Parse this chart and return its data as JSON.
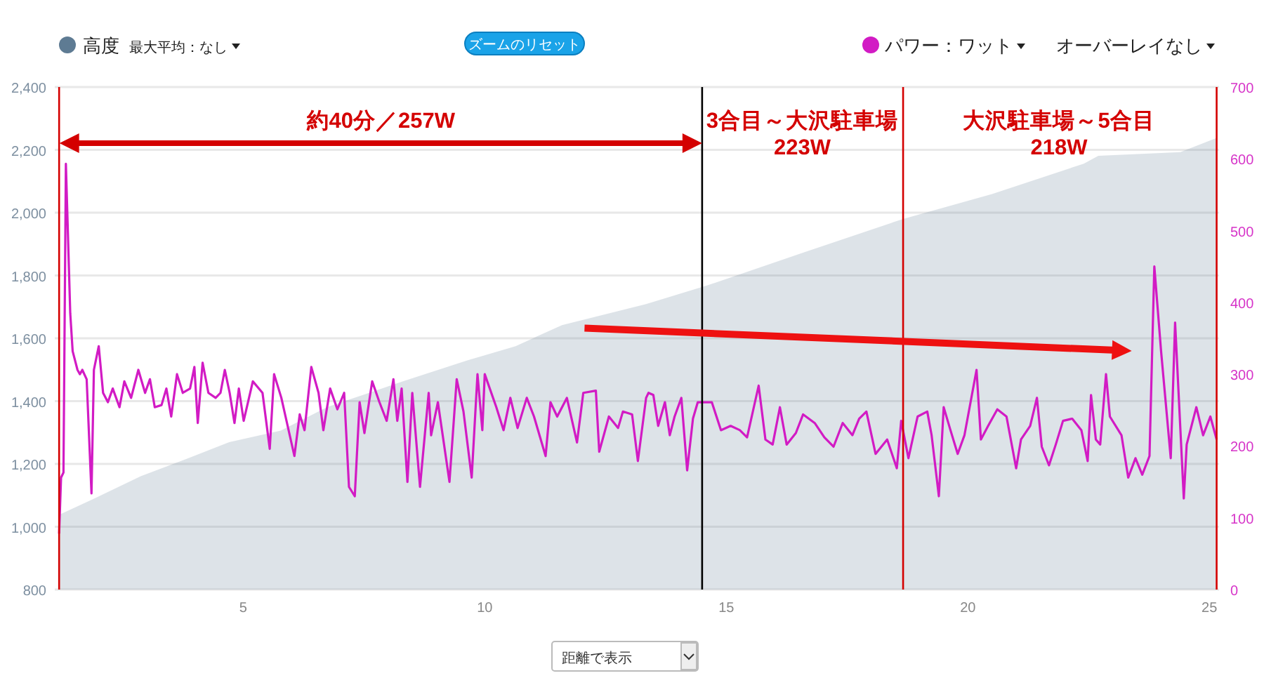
{
  "chart_data": {
    "type": "line",
    "legend": "top",
    "grid": "y",
    "marker": "none",
    "xlim": [
      1.1,
      25.2
    ],
    "xticks": [
      5,
      10,
      15,
      20,
      25
    ],
    "ylim": [
      800,
      2400
    ],
    "yticks": [
      800,
      {
        "value": 1000,
        "label": "1,000"
      },
      {
        "value": 1200,
        "label": "1,200"
      },
      {
        "value": 1400,
        "label": "1,400"
      },
      {
        "value": 1600,
        "label": "1,600"
      },
      {
        "value": 1800,
        "label": "1,800"
      },
      {
        "value": 2000,
        "label": "2,000"
      },
      {
        "value": 2200,
        "label": "2,200"
      },
      {
        "value": 2400,
        "label": "2,400"
      }
    ],
    "y2lim": [
      0,
      700
    ],
    "y2ticks": [
      0,
      100,
      200,
      300,
      400,
      500,
      600,
      700
    ],
    "series": [
      {
        "name": "高度",
        "type": "area",
        "color": "#5e7b93",
        "x": [
          1.19,
          1.92,
          2.88,
          3.84,
          4.71,
          5.78,
          6.74,
          8.31,
          9.65,
          10.64,
          11.6,
          13.34,
          14.6,
          16.6,
          18.66,
          20.5,
          22.4,
          22.7,
          24.4,
          25.15
        ],
        "values": [
          1038,
          1090,
          1161,
          1217,
          1269,
          1306,
          1381,
          1463,
          1530,
          1575,
          1642,
          1709,
          1768,
          1873,
          1980,
          2059,
          2156,
          2181,
          2193,
          2238
        ]
      },
      {
        "name": "パワー：ワット",
        "type": "line",
        "axis": "y2",
        "color": "#d21bc4",
        "x": [
          1.19,
          1.23,
          1.28,
          1.33,
          1.42,
          1.47,
          1.57,
          1.62,
          1.67,
          1.76,
          1.86,
          1.91,
          2.01,
          2.1,
          2.2,
          2.3,
          2.44,
          2.54,
          2.68,
          2.83,
          2.97,
          3.07,
          3.17,
          3.31,
          3.41,
          3.51,
          3.63,
          3.75,
          3.9,
          3.99,
          4.06,
          4.16,
          4.28,
          4.43,
          4.53,
          4.62,
          4.72,
          4.82,
          4.91,
          5.01,
          5.2,
          5.4,
          5.55,
          5.64,
          5.79,
          6.06,
          6.17,
          6.27,
          6.41,
          6.56,
          6.66,
          6.8,
          6.95,
          7.09,
          7.19,
          7.31,
          7.41,
          7.51,
          7.67,
          7.82,
          7.97,
          8.11,
          8.19,
          8.28,
          8.4,
          8.5,
          8.66,
          8.84,
          8.89,
          9.03,
          9.27,
          9.42,
          9.56,
          9.73,
          9.85,
          9.95,
          10.0,
          10.24,
          10.39,
          10.53,
          10.68,
          10.87,
          11.02,
          11.26,
          11.36,
          11.5,
          11.7,
          11.91,
          12.04,
          12.3,
          12.37,
          12.57,
          12.76,
          12.86,
          13.05,
          13.17,
          13.34,
          13.39,
          13.49,
          13.59,
          13.73,
          13.83,
          13.93,
          14.07,
          14.19,
          14.31,
          14.41,
          14.55,
          14.7,
          14.89,
          15.09,
          15.28,
          15.43,
          15.67,
          15.81,
          15.96,
          16.11,
          16.25,
          16.44,
          16.59,
          16.83,
          17.03,
          17.22,
          17.41,
          17.61,
          17.75,
          17.9,
          18.09,
          18.33,
          18.53,
          18.62,
          18.77,
          18.96,
          19.16,
          19.25,
          19.4,
          19.5,
          19.64,
          19.79,
          19.93,
          20.18,
          20.27,
          20.42,
          20.61,
          20.8,
          21.0,
          21.1,
          21.29,
          21.43,
          21.53,
          21.68,
          21.82,
          21.97,
          22.16,
          22.35,
          22.48,
          22.55,
          22.65,
          22.74,
          22.86,
          22.94,
          23.18,
          23.32,
          23.47,
          23.61,
          23.76,
          23.86,
          24.0,
          24.2,
          24.29,
          24.47,
          24.53,
          24.73,
          24.87,
          25.02,
          25.15
        ],
        "values": [
          78,
          156,
          163,
          593,
          385,
          332,
          306,
          300,
          306,
          293,
          134,
          306,
          339,
          274,
          261,
          280,
          254,
          290,
          267,
          306,
          274,
          293,
          254,
          257,
          280,
          241,
          300,
          274,
          280,
          310,
          232,
          316,
          274,
          267,
          274,
          306,
          274,
          232,
          280,
          235,
          290,
          274,
          196,
          300,
          267,
          186,
          244,
          222,
          310,
          274,
          222,
          280,
          251,
          274,
          143,
          130,
          261,
          218,
          290,
          261,
          235,
          293,
          235,
          280,
          150,
          274,
          143,
          274,
          215,
          261,
          150,
          293,
          248,
          156,
          300,
          222,
          300,
          254,
          222,
          267,
          225,
          267,
          241,
          186,
          261,
          241,
          267,
          205,
          274,
          277,
          192,
          241,
          225,
          248,
          244,
          179,
          267,
          274,
          271,
          228,
          261,
          215,
          241,
          267,
          166,
          238,
          261,
          261,
          261,
          222,
          228,
          222,
          212,
          284,
          209,
          202,
          254,
          202,
          218,
          244,
          232,
          212,
          199,
          232,
          215,
          238,
          248,
          189,
          209,
          169,
          235,
          183,
          241,
          248,
          215,
          130,
          254,
          222,
          189,
          215,
          306,
          209,
          228,
          251,
          241,
          169,
          209,
          228,
          267,
          199,
          173,
          202,
          235,
          238,
          222,
          179,
          271,
          209,
          202,
          300,
          241,
          215,
          156,
          183,
          160,
          186,
          450,
          332,
          183,
          372,
          127,
          202,
          254,
          215,
          241,
          209
        ]
      }
    ],
    "ref_lines": [
      {
        "axis": "x",
        "value": 1.19,
        "color": "#d40000"
      },
      {
        "axis": "x",
        "value": 14.5,
        "color": "#000000"
      },
      {
        "axis": "x",
        "value": 18.66,
        "color": "#d40000"
      },
      {
        "axis": "x",
        "value": 25.15,
        "color": "#d40000"
      }
    ],
    "annotations": [
      "約40分／257W",
      "3合目～大沢駐車場\n223W",
      "大沢駐車場～5合目\n218W",
      "最大平均：なし",
      "ズームのリセット",
      "オーバーレイなし",
      "距離で表示"
    ]
  }
}
